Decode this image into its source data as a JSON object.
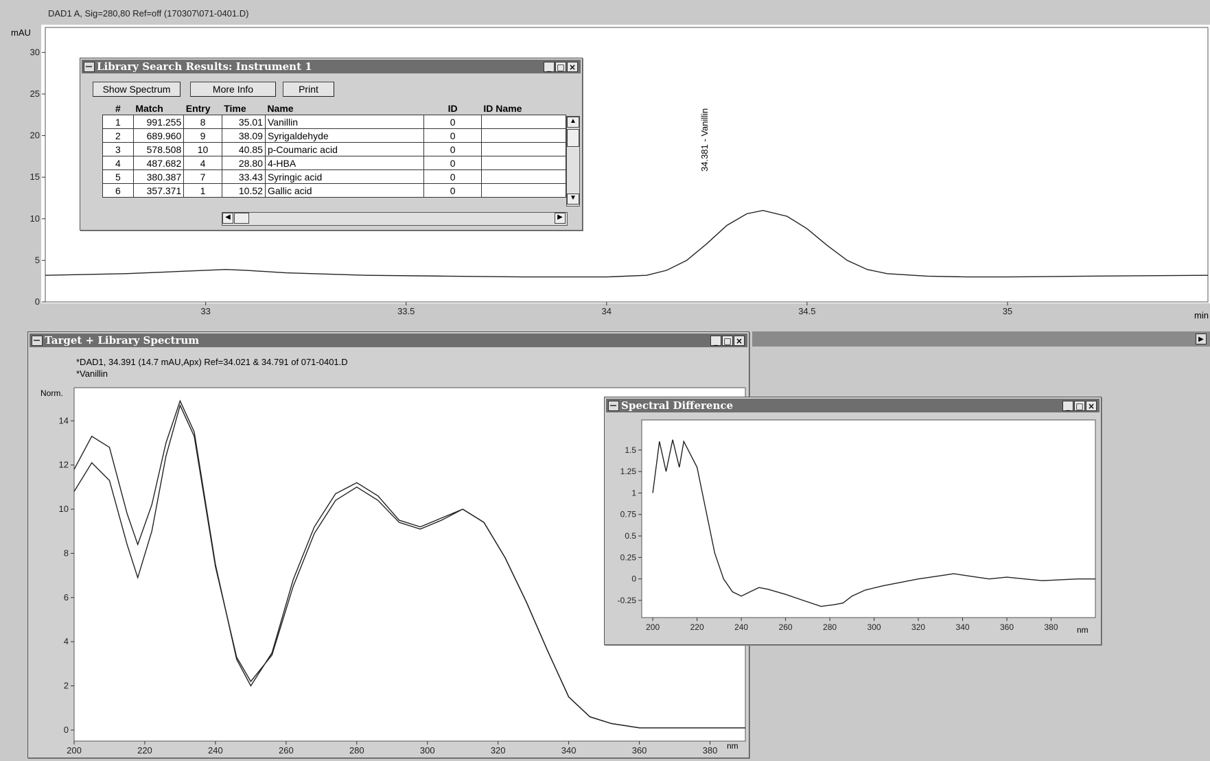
{
  "chromatogram": {
    "title": "DAD1 A, Sig=280,80 Ref=off (170307\\071-0401.D)",
    "y_unit": "mAU",
    "x_unit": "min",
    "peak_label": "34.381 - Vanillin"
  },
  "library_window": {
    "title": "Library Search Results: Instrument 1",
    "buttons": {
      "show_spectrum": "Show Spectrum",
      "more_info": "More Info",
      "print": "Print"
    },
    "columns": [
      "#",
      "Match",
      "Entry",
      "Time",
      "Name",
      "ID",
      "ID Name"
    ],
    "rows": [
      {
        "n": "1",
        "match": "991.255",
        "entry": "8",
        "time": "35.01",
        "name": "Vanillin",
        "id": "0",
        "id_name": ""
      },
      {
        "n": "2",
        "match": "689.960",
        "entry": "9",
        "time": "38.09",
        "name": "Syrigaldehyde",
        "id": "0",
        "id_name": ""
      },
      {
        "n": "3",
        "match": "578.508",
        "entry": "10",
        "time": "40.85",
        "name": "p-Coumaric acid",
        "id": "0",
        "id_name": ""
      },
      {
        "n": "4",
        "match": "487.682",
        "entry": "4",
        "time": "28.80",
        "name": "4-HBA",
        "id": "0",
        "id_name": ""
      },
      {
        "n": "5",
        "match": "380.387",
        "entry": "7",
        "time": "33.43",
        "name": "Syringic acid",
        "id": "0",
        "id_name": ""
      },
      {
        "n": "6",
        "match": "357.371",
        "entry": "1",
        "time": "10.52",
        "name": "Gallic acid",
        "id": "0",
        "id_name": ""
      }
    ]
  },
  "spectrum_window": {
    "title": "Target + Library Spectrum",
    "info_line1": "*DAD1, 34.391 (14.7 mAU,Apx) Ref=34.021 & 34.791 of 071-0401.D",
    "info_line2": "*Vanillin",
    "y_unit": "Norm.",
    "x_unit": "nm"
  },
  "difference_window": {
    "title": "Spectral Difference",
    "x_unit": "nm"
  },
  "window_buttons": {
    "minimize": "_",
    "maximize": "□",
    "close": "×"
  },
  "chart_data": [
    {
      "type": "line",
      "name": "chromatogram",
      "xlim": [
        32.6,
        35.5
      ],
      "ylim": [
        0,
        33
      ],
      "x_ticks": [
        33,
        33.5,
        34,
        34.5,
        35
      ],
      "x_tick_labels": [
        "33",
        "33.5",
        "34",
        "34.5",
        "35"
      ],
      "y_ticks": [
        0,
        5,
        10,
        15,
        20,
        25,
        30
      ],
      "x": [
        32.6,
        32.8,
        32.9,
        33.0,
        33.05,
        33.1,
        33.2,
        33.4,
        33.6,
        33.8,
        34.0,
        34.1,
        34.15,
        34.2,
        34.25,
        34.3,
        34.35,
        34.39,
        34.45,
        34.5,
        34.55,
        34.6,
        34.65,
        34.7,
        34.8,
        34.9,
        35.0,
        35.2,
        35.5
      ],
      "y": [
        3.2,
        3.4,
        3.6,
        3.8,
        3.9,
        3.8,
        3.5,
        3.2,
        3.1,
        3.0,
        3.0,
        3.2,
        3.8,
        5.0,
        7.0,
        9.2,
        10.6,
        11.0,
        10.3,
        8.8,
        6.8,
        5.0,
        3.9,
        3.4,
        3.1,
        3.0,
        3.0,
        3.1,
        3.2
      ]
    },
    {
      "type": "line",
      "name": "target-library-spectrum",
      "xlim": [
        200,
        390
      ],
      "ylim": [
        -0.5,
        15.5
      ],
      "x_ticks": [
        200,
        220,
        240,
        260,
        280,
        300,
        320,
        340,
        360,
        380
      ],
      "y_ticks": [
        0,
        2,
        4,
        6,
        8,
        10,
        12,
        14
      ],
      "series": [
        {
          "x": [
            200,
            205,
            210,
            215,
            218,
            222,
            226,
            230,
            234,
            240,
            246,
            250,
            256,
            262,
            268,
            274,
            280,
            286,
            292,
            298,
            304,
            310,
            316,
            322,
            328,
            334,
            340,
            346,
            352,
            360,
            370,
            380,
            390
          ],
          "values": [
            11.8,
            13.3,
            12.8,
            9.8,
            8.4,
            10.2,
            13.0,
            14.9,
            13.5,
            7.5,
            3.2,
            2.0,
            3.5,
            6.8,
            9.2,
            10.7,
            11.2,
            10.6,
            9.5,
            9.2,
            9.6,
            10.0,
            9.4,
            7.8,
            5.8,
            3.6,
            1.5,
            0.6,
            0.3,
            0.1,
            0.1,
            0.1,
            0.1
          ]
        },
        {
          "x": [
            200,
            205,
            210,
            215,
            218,
            222,
            226,
            230,
            234,
            240,
            246,
            250,
            256,
            262,
            268,
            274,
            280,
            286,
            292,
            298,
            304,
            310,
            316,
            322,
            328,
            334,
            340,
            346,
            352,
            360,
            370,
            380,
            390
          ],
          "values": [
            10.8,
            12.1,
            11.3,
            8.4,
            6.9,
            9.0,
            12.4,
            14.7,
            13.3,
            7.4,
            3.3,
            2.2,
            3.4,
            6.5,
            8.9,
            10.4,
            11.0,
            10.4,
            9.4,
            9.1,
            9.5,
            10.0,
            9.4,
            7.8,
            5.8,
            3.6,
            1.5,
            0.6,
            0.3,
            0.1,
            0.1,
            0.1,
            0.1
          ]
        }
      ]
    },
    {
      "type": "line",
      "name": "spectral-difference",
      "xlim": [
        195,
        400
      ],
      "ylim": [
        -0.45,
        1.85
      ],
      "x_ticks": [
        200,
        220,
        240,
        260,
        280,
        300,
        320,
        340,
        360,
        380
      ],
      "y_ticks": [
        -0.25,
        0,
        0.25,
        0.5,
        0.75,
        1,
        1.25,
        1.5
      ],
      "y_tick_labels": [
        "-0.25",
        "0",
        "0.25",
        "0.5",
        "0.75",
        "1",
        "1.25",
        "1.5"
      ],
      "x": [
        200,
        203,
        206,
        209,
        212,
        214,
        216,
        220,
        224,
        228,
        232,
        236,
        240,
        244,
        248,
        252,
        260,
        268,
        276,
        282,
        286,
        290,
        296,
        304,
        312,
        320,
        328,
        336,
        344,
        352,
        360,
        368,
        376,
        384,
        392,
        400
      ],
      "y": [
        1.0,
        1.6,
        1.25,
        1.62,
        1.3,
        1.6,
        1.5,
        1.3,
        0.8,
        0.3,
        0.0,
        -0.15,
        -0.2,
        -0.15,
        -0.1,
        -0.12,
        -0.18,
        -0.25,
        -0.32,
        -0.3,
        -0.28,
        -0.2,
        -0.13,
        -0.08,
        -0.04,
        0.0,
        0.03,
        0.06,
        0.03,
        0.0,
        0.02,
        0.0,
        -0.02,
        -0.01,
        0.0,
        0.0
      ]
    }
  ]
}
